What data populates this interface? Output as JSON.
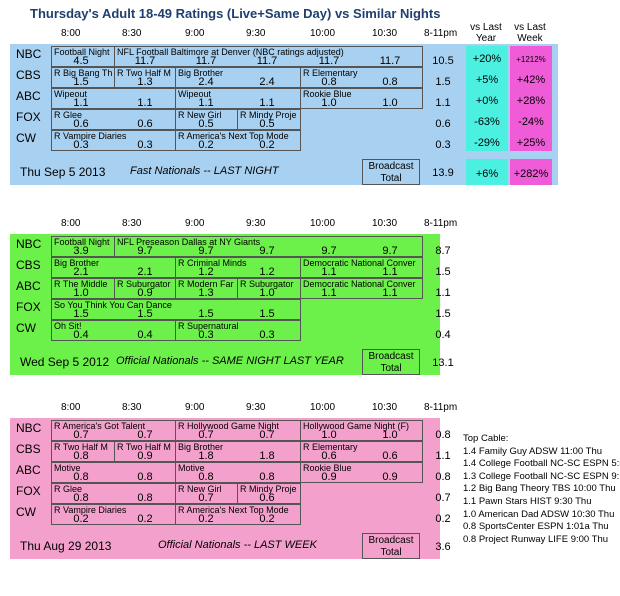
{
  "title": "Thursday's Adult 18-49 Ratings (Live+Same Day) vs Similar Nights",
  "comparison_headers": {
    "vs_last_year": "vs Last Year",
    "vs_last_week": "vs Last Week"
  },
  "time_slots": [
    "8:00",
    "8:30",
    "9:00",
    "9:30",
    "10:00",
    "10:30",
    "8-11pm"
  ],
  "colors": {
    "blue": "#a8d0f0",
    "green": "#6cf04a",
    "pink": "#f4a0cc",
    "cyan_cmp": "#4cf0e0",
    "magenta_cmp": "#f05cd8"
  },
  "sections": [
    {
      "id": "tonight",
      "rows": [
        {
          "network": "NBC",
          "shows": [
            "Football Night",
            "NFL Football Baltimore at Denver (NBC ratings adjusted)"
          ],
          "values": [
            "4.5",
            "11.7",
            "11.7",
            "11.7",
            "11.7",
            "11.7"
          ],
          "total": "10.5",
          "vs_year": "+20%",
          "vs_week": "+1212%"
        },
        {
          "network": "CBS",
          "shows": [
            "R Big Bang Th",
            "R Two Half M",
            "Big Brother",
            "R Elementary"
          ],
          "values": [
            "1.5",
            "1.3",
            "2.4",
            "2.4",
            "0.8",
            "0.8"
          ],
          "total": "1.5",
          "vs_year": "+5%",
          "vs_week": "+42%"
        },
        {
          "network": "ABC",
          "shows": [
            "Wipeout",
            "Wipeout",
            "Rookie Blue"
          ],
          "values": [
            "1.1",
            "1.1",
            "1.1",
            "1.1",
            "1.0",
            "1.0"
          ],
          "total": "1.1",
          "vs_year": "+0%",
          "vs_week": "+28%"
        },
        {
          "network": "FOX",
          "shows": [
            "R Glee",
            "R New Girl",
            "R Mindy Proje"
          ],
          "values": [
            "0.6",
            "0.6",
            "0.5",
            "0.5"
          ],
          "total": "0.6",
          "vs_year": "-63%",
          "vs_week": "-24%"
        },
        {
          "network": "CW",
          "shows": [
            "R Vampire Diaries",
            "R America's Next Top Mode"
          ],
          "values": [
            "0.3",
            "0.3",
            "0.2",
            "0.2"
          ],
          "total": "0.3",
          "vs_year": "-29%",
          "vs_week": "+25%"
        }
      ],
      "footer": {
        "date": "Thu Sep 5 2013",
        "note": "Fast Nationals -- LAST NIGHT",
        "broadcast_label": "Broadcast Total",
        "broadcast_total": "13.9",
        "vs_year": "+6%",
        "vs_week": "+282%"
      }
    },
    {
      "id": "last_year",
      "rows": [
        {
          "network": "NBC",
          "shows": [
            "Football Night",
            "NFL Preseason Dallas at NY Giants"
          ],
          "values": [
            "3.9",
            "9.7",
            "9.7",
            "9.7",
            "9.7",
            "9.7"
          ],
          "total": "8.7"
        },
        {
          "network": "CBS",
          "shows": [
            "Big Brother",
            "R Criminal Minds",
            "Democratic National Conver"
          ],
          "values": [
            "2.1",
            "2.1",
            "1.2",
            "1.2",
            "1.1",
            "1.1"
          ],
          "total": "1.5"
        },
        {
          "network": "ABC",
          "shows": [
            "R The Middle",
            "R Suburgator",
            "R Modern Far",
            "R Suburgator",
            "Democratic National Conver"
          ],
          "values": [
            "1.0",
            "0.9",
            "1.3",
            "1.0",
            "1.1",
            "1.1"
          ],
          "total": "1.1"
        },
        {
          "network": "FOX",
          "shows": [
            "So You Think You Can Dance"
          ],
          "values": [
            "1.5",
            "1.5",
            "1.5",
            "1.5"
          ],
          "total": "1.5"
        },
        {
          "network": "CW",
          "shows": [
            "Oh Sit!",
            "R Supernatural"
          ],
          "values": [
            "0.4",
            "0.4",
            "0.3",
            "0.3"
          ],
          "total": "0.4"
        }
      ],
      "footer": {
        "date": "Wed Sep 5 2012",
        "note": "Official Nationals -- SAME NIGHT LAST YEAR",
        "broadcast_label": "Broadcast Total",
        "broadcast_total": "13.1"
      }
    },
    {
      "id": "last_week",
      "rows": [
        {
          "network": "NBC",
          "shows": [
            "R America's Got Talent",
            "R Hollywood Game Night",
            "Hollywood Game Night (F)"
          ],
          "values": [
            "0.7",
            "0.7",
            "0.7",
            "0.7",
            "1.0",
            "1.0"
          ],
          "total": "0.8"
        },
        {
          "network": "CBS",
          "shows": [
            "R Two Half M",
            "R Two Half M",
            "Big Brother",
            "R Elementary"
          ],
          "values": [
            "0.8",
            "0.9",
            "1.8",
            "1.8",
            "0.6",
            "0.6"
          ],
          "total": "1.1"
        },
        {
          "network": "ABC",
          "shows": [
            "Motive",
            "Motive",
            "Rookie Blue"
          ],
          "values": [
            "0.8",
            "0.8",
            "0.8",
            "0.8",
            "0.9",
            "0.9"
          ],
          "total": "0.8"
        },
        {
          "network": "FOX",
          "shows": [
            "R Glee",
            "R New Girl",
            "R Mindy Proje"
          ],
          "values": [
            "0.8",
            "0.8",
            "0.7",
            "0.6"
          ],
          "total": "0.7"
        },
        {
          "network": "CW",
          "shows": [
            "R Vampire Diaries",
            "R America's Next Top Mode"
          ],
          "values": [
            "0.2",
            "0.2",
            "0.2",
            "0.2"
          ],
          "total": "0.2"
        }
      ],
      "footer": {
        "date": "Thu Aug 29 2013",
        "note": "Official Nationals -- LAST WEEK",
        "broadcast_label": "Broadcast Total",
        "broadcast_total": "3.6"
      }
    }
  ],
  "top_cable": {
    "title": "Top Cable:",
    "items": [
      "1.4 Family Guy ADSW 11:00 Thu",
      "1.4 College Football NC-SC ESPN 5:5",
      "1.3 College Football NC-SC ESPN 9:1",
      "1.2 Big Bang Theory TBS 10:00 Thu",
      "1.1 Pawn Stars HIST 9:30 Thu",
      "1.0 American Dad ADSW 10:30 Thu",
      "0.8 SportsCenter ESPN 1:01a Thu",
      "0.8 Project Runway LIFE 9:00 Thu"
    ]
  }
}
